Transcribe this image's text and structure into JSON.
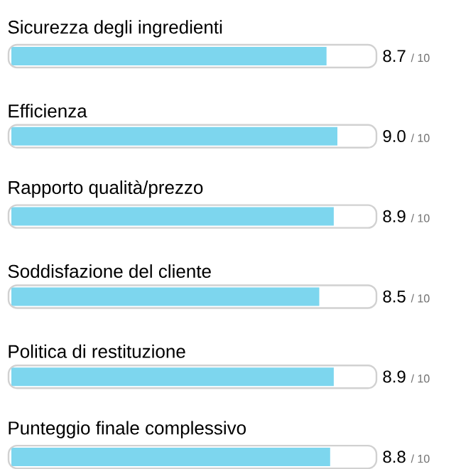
{
  "chart_data": {
    "type": "bar",
    "orientation": "horizontal",
    "categories": [
      "Sicurezza degli ingredienti",
      "Efficienza",
      "Rapporto qualità/prezzo",
      "Soddisfazione del cliente",
      "Politica di restituzione",
      "Punteggio finale complessivo"
    ],
    "values": [
      8.7,
      9.0,
      8.9,
      8.5,
      8.9,
      8.8
    ],
    "value_labels": [
      "8.7",
      "9.0",
      "8.9",
      "8.5",
      "8.9",
      "8.8"
    ],
    "annotations": [
      "/ 10",
      "/ 10",
      "/ 10",
      "/ 10",
      "/ 10",
      "/ 10"
    ],
    "color": "#7dd6ee",
    "xlim": [
      0,
      10
    ]
  }
}
